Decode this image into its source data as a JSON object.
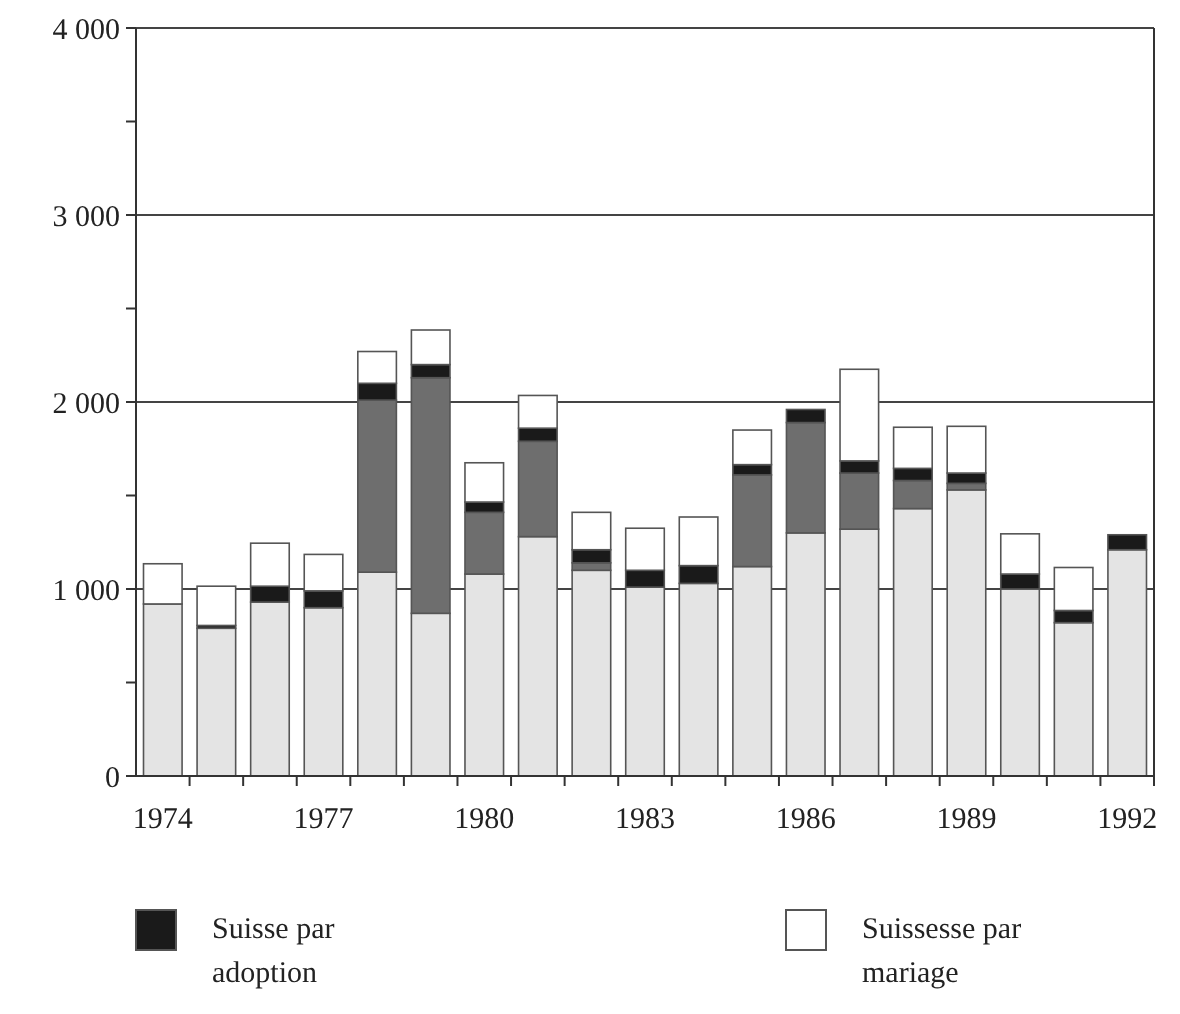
{
  "chart_data": {
    "type": "bar",
    "stacked": true,
    "categories": [
      "1974",
      null,
      null,
      "1977",
      null,
      null,
      "1980",
      null,
      null,
      "1983",
      null,
      null,
      "1986",
      null,
      null,
      "1989",
      null,
      null,
      "1992"
    ],
    "series": [
      {
        "color": "#e4e4e4",
        "values": [
          920,
          790,
          930,
          900,
          1090,
          870,
          1080,
          1280,
          1100,
          1010,
          1030,
          1120,
          1300,
          1320,
          1430,
          1530,
          1000,
          820,
          1210
        ]
      },
      {
        "color": "#6e6e6e",
        "values": [
          0,
          0,
          0,
          0,
          920,
          1260,
          330,
          510,
          40,
          0,
          0,
          490,
          590,
          300,
          150,
          35,
          0,
          0,
          0
        ]
      },
      {
        "name": "Suisse par adoption",
        "color": "#1a1a1a",
        "values": [
          0,
          15,
          85,
          90,
          90,
          70,
          55,
          70,
          70,
          90,
          95,
          55,
          70,
          65,
          65,
          55,
          80,
          65,
          80
        ]
      },
      {
        "name": "Suissesse par mariage",
        "color": "#ffffff",
        "values": [
          215,
          210,
          230,
          195,
          170,
          185,
          210,
          175,
          200,
          225,
          260,
          185,
          0,
          490,
          220,
          250,
          215,
          230,
          0
        ]
      }
    ],
    "ylim": [
      0,
      4000
    ],
    "yticks": [
      {
        "value": 0,
        "label": "0"
      },
      {
        "value": 500,
        "label": null
      },
      {
        "value": 1000,
        "label": "1 000"
      },
      {
        "value": 1500,
        "label": null
      },
      {
        "value": 2000,
        "label": "2 000"
      },
      {
        "value": 2500,
        "label": null
      },
      {
        "value": 3000,
        "label": "3 000"
      },
      {
        "value": 3500,
        "label": null
      },
      {
        "value": 4000,
        "label": "4 000"
      }
    ],
    "grid": "y",
    "legend": "bottom"
  }
}
